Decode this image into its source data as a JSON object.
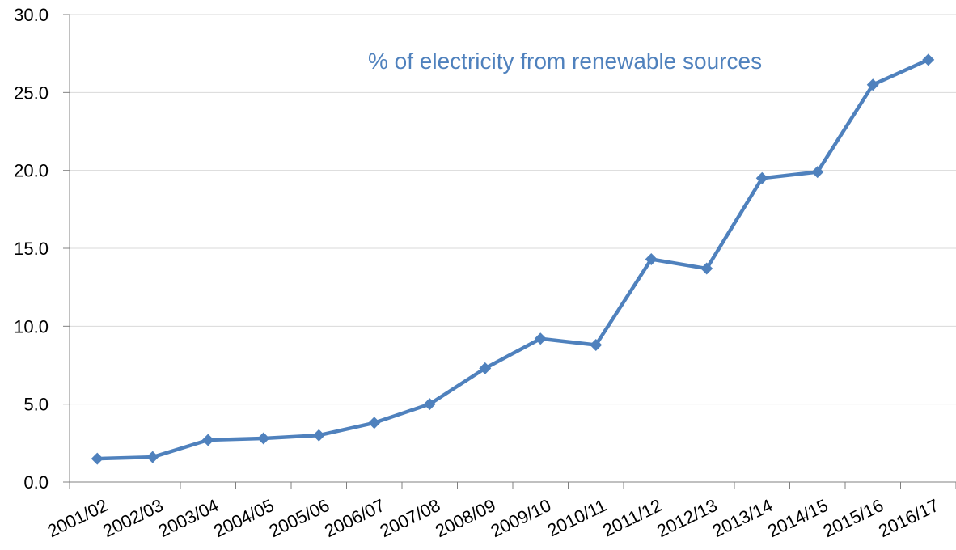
{
  "chart_data": {
    "type": "line",
    "title": "",
    "xlabel": "",
    "ylabel": "",
    "categories": [
      "2001/02",
      "2002/03",
      "2003/04",
      "2004/05",
      "2005/06",
      "2006/07",
      "2007/08",
      "2008/09",
      "2009/10",
      "2010/11",
      "2011/12",
      "2012/13",
      "2013/14",
      "2014/15",
      "2015/16",
      "2016/17"
    ],
    "series": [
      {
        "values": [
          1.5,
          1.6,
          2.7,
          2.8,
          3.0,
          3.8,
          5.0,
          7.3,
          9.2,
          8.8,
          14.3,
          13.7,
          19.5,
          19.9,
          25.5,
          27.1
        ]
      }
    ],
    "ylim": [
      0,
      30
    ],
    "y_ticks": [
      "0.0",
      "5.0",
      "10.0",
      "15.0",
      "20.0",
      "25.0",
      "30.0"
    ],
    "grid": "horizontal",
    "legend": "none",
    "marker": "diamond",
    "annotation": "% of electricity from renewable sources",
    "colors": {
      "series": "#4f81bd",
      "grid": "#d9d9d9",
      "axis": "#808080",
      "text": "#000000"
    }
  }
}
